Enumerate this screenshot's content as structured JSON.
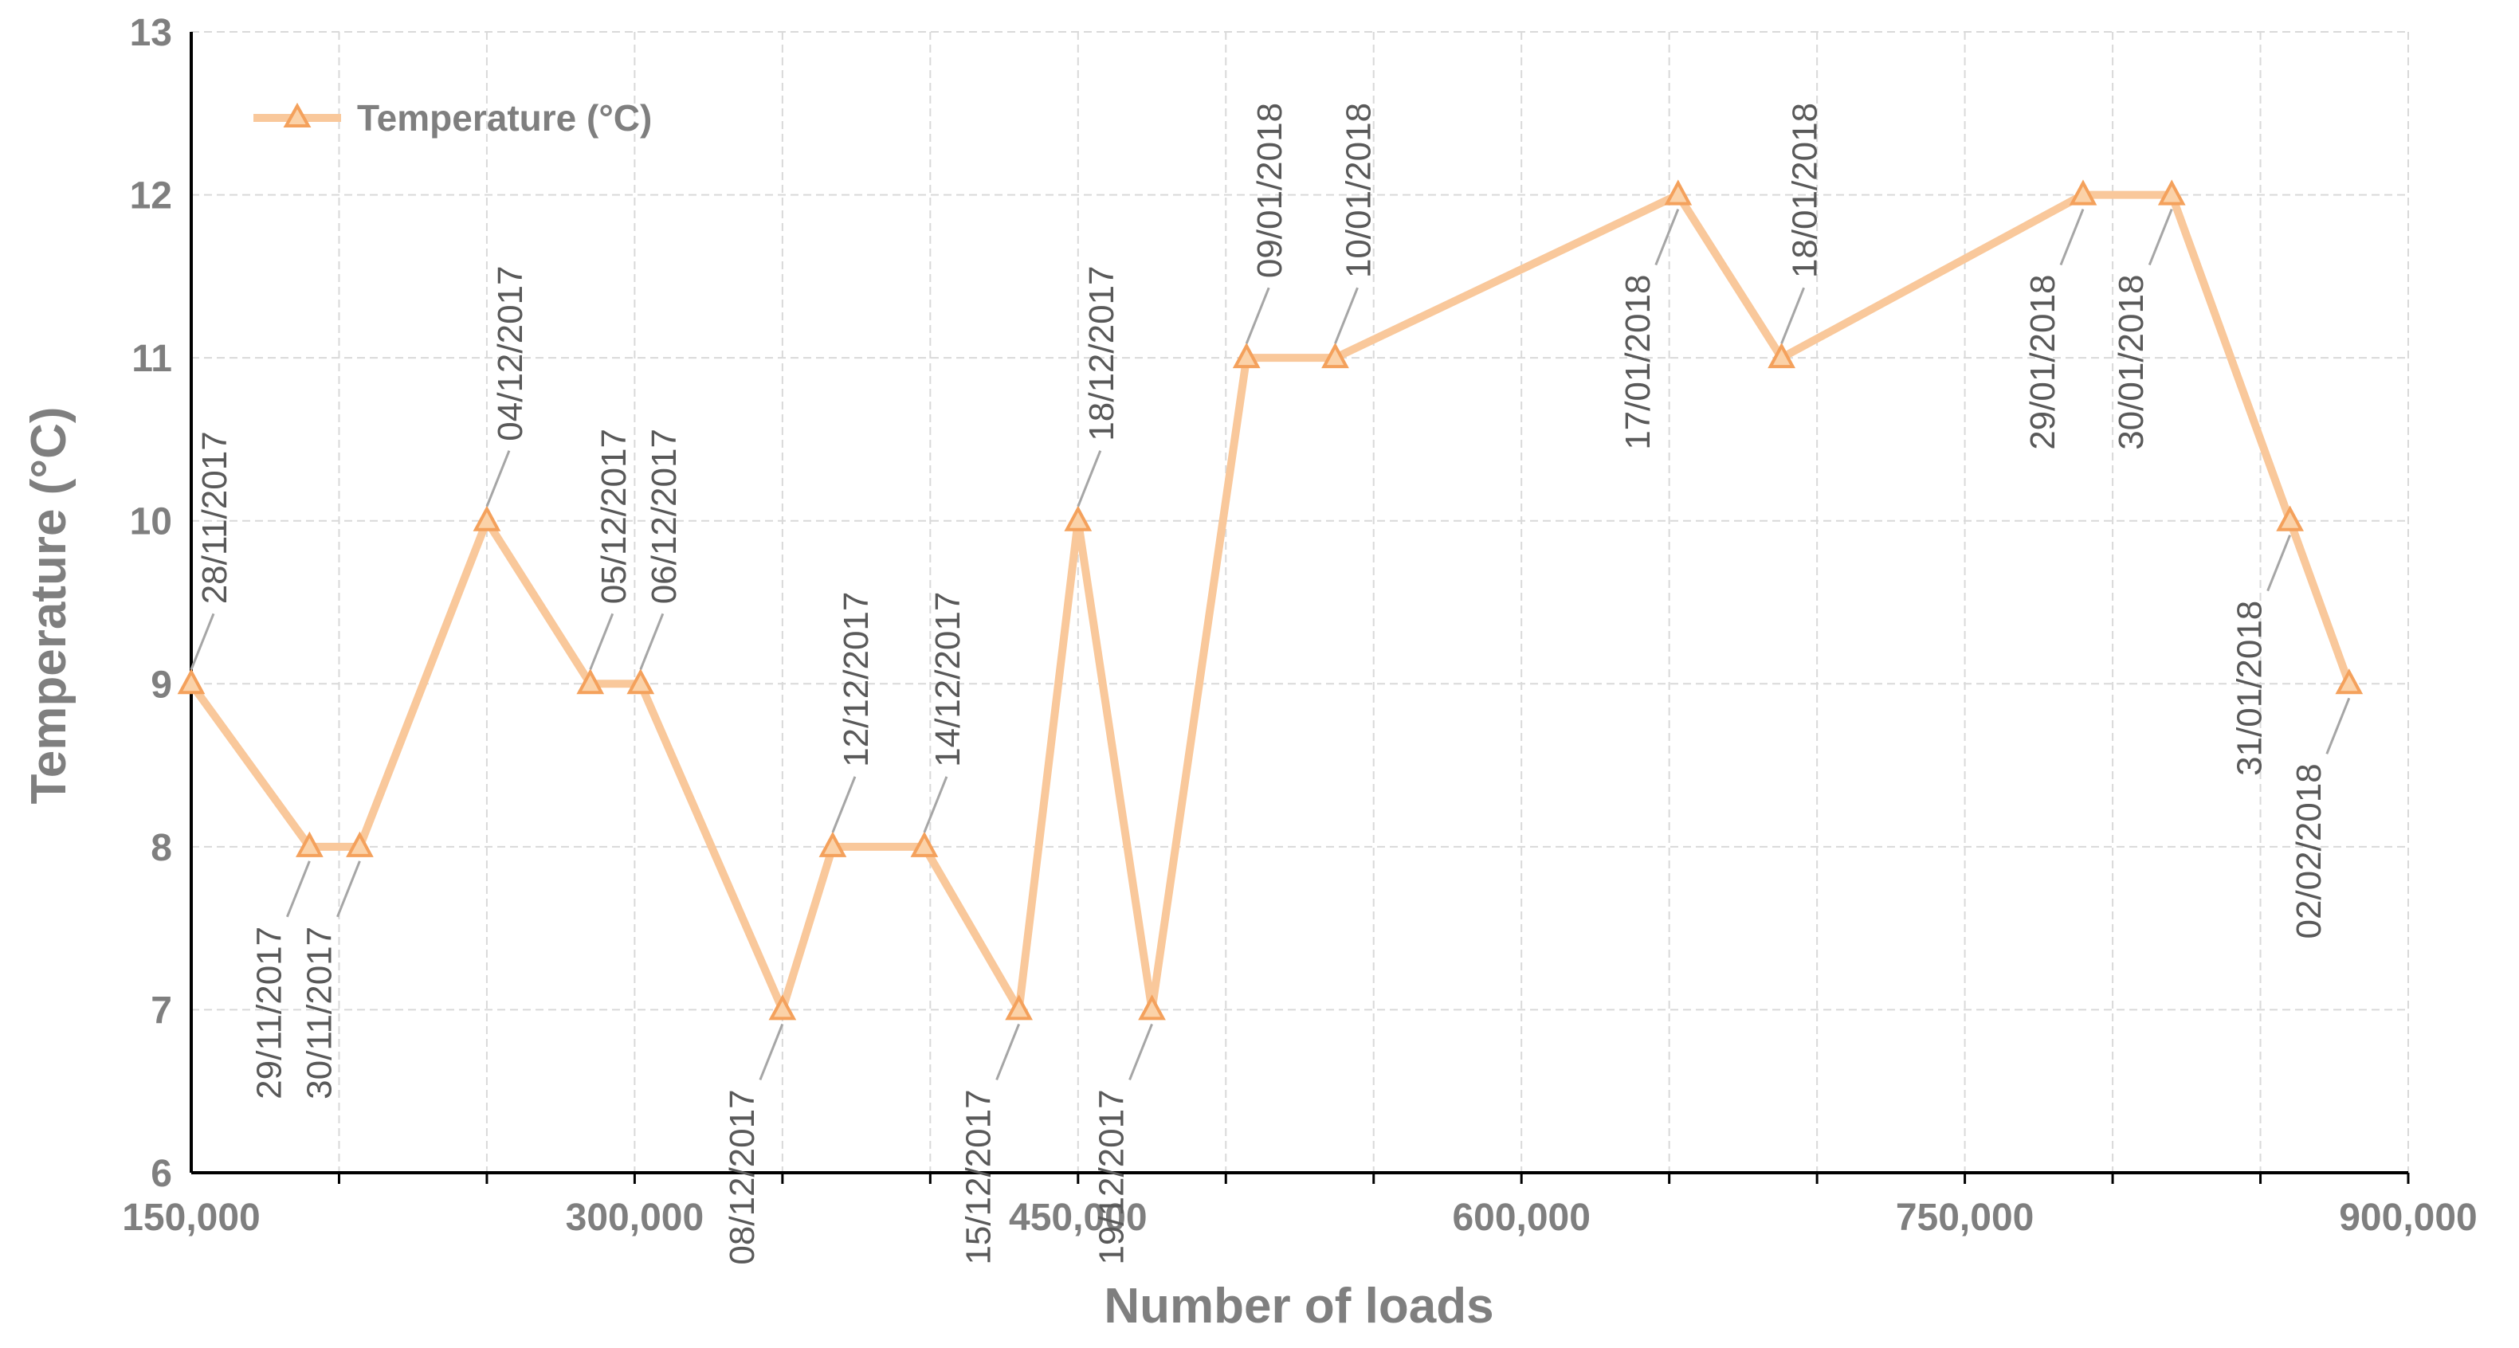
{
  "chart_data": {
    "type": "line",
    "title": "",
    "xlabel": "Number of loads",
    "ylabel": "Temperature (°C)",
    "xlim": [
      150000,
      900000
    ],
    "ylim": [
      6,
      13
    ],
    "x_ticks": [
      "150,000",
      "300,000",
      "450,000",
      "600,000",
      "750,000",
      "900,000"
    ],
    "x_tick_values": [
      150000,
      300000,
      450000,
      600000,
      750000,
      900000
    ],
    "x_minor_step": 50000,
    "y_ticks": [
      "6",
      "7",
      "8",
      "9",
      "10",
      "11",
      "12",
      "13"
    ],
    "y_tick_values": [
      6,
      7,
      8,
      9,
      10,
      11,
      12,
      13
    ],
    "grid": true,
    "legend_position": "top-left",
    "series": [
      {
        "name": "Temperature (°C)",
        "color": "#f9c89b",
        "marker": "triangle",
        "marker_color": "#f4a15c",
        "points": [
          {
            "x": 150000,
            "y": 9,
            "label": "28/11/2017",
            "label_side": "above"
          },
          {
            "x": 190000,
            "y": 8,
            "label": "29/11/2017",
            "label_side": "below"
          },
          {
            "x": 207000,
            "y": 8,
            "label": "30/11/2017",
            "label_side": "below"
          },
          {
            "x": 250000,
            "y": 10,
            "label": "04/12/2017",
            "label_side": "above"
          },
          {
            "x": 285000,
            "y": 9,
            "label": "05/12/2017",
            "label_side": "above"
          },
          {
            "x": 302000,
            "y": 9,
            "label": "06/12/2017",
            "label_side": "above"
          },
          {
            "x": 350000,
            "y": 7,
            "label": "08/12/2017",
            "label_side": "below"
          },
          {
            "x": 367000,
            "y": 8,
            "label": "12/12/2017",
            "label_side": "above"
          },
          {
            "x": 398000,
            "y": 8,
            "label": "14/12/2017",
            "label_side": "above"
          },
          {
            "x": 430000,
            "y": 7,
            "label": "15/12/2017",
            "label_side": "below"
          },
          {
            "x": 450000,
            "y": 10,
            "label": "18/12/2017",
            "label_side": "above"
          },
          {
            "x": 475000,
            "y": 7,
            "label": "19/12/2017",
            "label_side": "below"
          },
          {
            "x": 507000,
            "y": 11,
            "label": "09/01/2018",
            "label_side": "above"
          },
          {
            "x": 537000,
            "y": 11,
            "label": "10/01/2018",
            "label_side": "above"
          },
          {
            "x": 653000,
            "y": 12,
            "label": "17/01/2018",
            "label_side": "below"
          },
          {
            "x": 688000,
            "y": 11,
            "label": "18/01/2018",
            "label_side": "above"
          },
          {
            "x": 790000,
            "y": 12,
            "label": "29/01/2018",
            "label_side": "below"
          },
          {
            "x": 820000,
            "y": 12,
            "label": "30/01/2018",
            "label_side": "below"
          },
          {
            "x": 860000,
            "y": 10,
            "label": "31/01/2018",
            "label_side": "below"
          },
          {
            "x": 880000,
            "y": 9,
            "label": "02/02/2018",
            "label_side": "below"
          }
        ]
      }
    ]
  }
}
